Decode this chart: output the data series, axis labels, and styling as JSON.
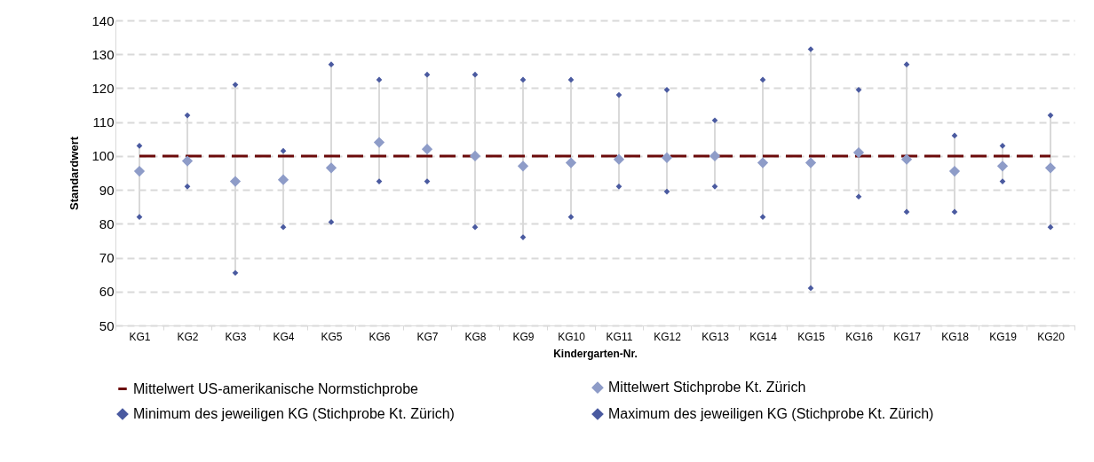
{
  "chart_data": {
    "type": "scatter",
    "xlabel": "Kindergarten-Nr.",
    "ylabel": "Standardwert",
    "categories": [
      "KG1",
      "KG2",
      "KG3",
      "KG4",
      "KG5",
      "KG6",
      "KG7",
      "KG8",
      "KG9",
      "KG10",
      "KG11",
      "KG12",
      "KG13",
      "KG14",
      "KG15",
      "KG16",
      "KG17",
      "KG18",
      "KG19",
      "KG20"
    ],
    "series": [
      {
        "name": "Mittelwert US-amerikanische Normstichprobe",
        "type": "line",
        "line_style": "dashed",
        "marker": "none",
        "color": "#6b0a0a",
        "values": [
          100,
          100,
          100,
          100,
          100,
          100,
          100,
          100,
          100,
          100,
          100,
          100,
          100,
          100,
          100,
          100,
          100,
          100,
          100,
          100
        ]
      },
      {
        "name": "Mittelwert Stichprobe Kt. Zürich",
        "color": "#8e9cc8",
        "values": [
          95.5,
          98.5,
          92.5,
          93,
          96.5,
          104,
          102,
          100,
          97,
          98,
          99,
          99.5,
          100,
          98,
          98,
          101,
          99,
          95.5,
          97,
          96.5
        ]
      },
      {
        "name": "Minimum des jeweiligen KG (Stichprobe Kt. Zürich)",
        "color": "#4a5aa0",
        "values": [
          82,
          91,
          65.5,
          79,
          80.5,
          92.5,
          92.5,
          79,
          76,
          82,
          91,
          89.5,
          91,
          82,
          61,
          88,
          83.5,
          83.5,
          92.5,
          79
        ]
      },
      {
        "name": "Maximum des jeweiligen KG (Stichprobe Kt. Zürich)",
        "color": "#4a5aa0",
        "values": [
          103,
          112,
          121,
          101.5,
          127,
          122.5,
          124,
          124,
          122.5,
          122.5,
          118,
          119.5,
          110.5,
          122.5,
          131.5,
          119.5,
          127,
          106,
          103,
          112
        ]
      }
    ],
    "marker": "diamond",
    "ylim": [
      50,
      140
    ],
    "yticks": [
      50,
      60,
      70,
      80,
      90,
      100,
      110,
      120,
      130,
      140
    ],
    "grid": "y",
    "legend": "bottom"
  }
}
